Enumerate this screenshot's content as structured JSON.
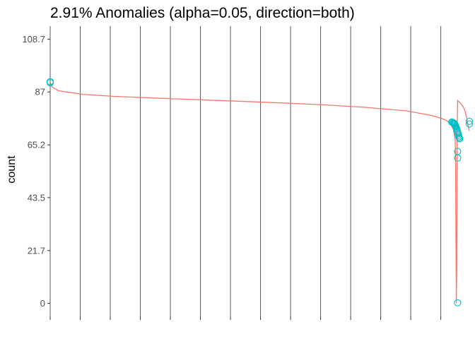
{
  "chart_data": {
    "type": "line",
    "title": "2.91% Anomalies (alpha=0.05, direction=both)",
    "xlabel": "",
    "ylabel": "count",
    "yticks": [
      "0",
      "21.7",
      "43.5",
      "65.2",
      "87",
      "108.7"
    ],
    "ylim": [
      -5.4,
      114.1
    ],
    "xlim": [
      0,
      1000
    ],
    "grid": "vertical-only",
    "legend": "none",
    "line_color": "#f8766d",
    "anomaly_color": "#00bfc4",
    "series": [
      {
        "values": [
          [
            0,
            91
          ],
          [
            5,
            89
          ],
          [
            20,
            87.5
          ],
          [
            50,
            86.7
          ],
          [
            80,
            86
          ],
          [
            150,
            85.2
          ],
          [
            250,
            84.5
          ],
          [
            350,
            83.8
          ],
          [
            450,
            83.2
          ],
          [
            550,
            82.5
          ],
          [
            650,
            81.7
          ],
          [
            750,
            80.7
          ],
          [
            850,
            79.2
          ],
          [
            905,
            77.5
          ],
          [
            920,
            76.8
          ],
          [
            935,
            76
          ],
          [
            945,
            75.3
          ],
          [
            955,
            73.8
          ],
          [
            962,
            71.5
          ],
          [
            966,
            68
          ],
          [
            967,
            62
          ],
          [
            968,
            30
          ],
          [
            969,
            0
          ],
          [
            970,
            15
          ],
          [
            971,
            70
          ],
          [
            972,
            83.5
          ],
          [
            978,
            82.5
          ],
          [
            985,
            81
          ],
          [
            990,
            79
          ],
          [
            994,
            76
          ],
          [
            997,
            73
          ],
          [
            1000,
            71
          ]
        ]
      }
    ],
    "anomalies": [
      [
        0,
        91.2
      ],
      [
        0,
        90.8
      ],
      [
        958,
        74.6
      ],
      [
        960,
        74.5
      ],
      [
        962,
        74.3
      ],
      [
        963,
        74.2
      ],
      [
        964,
        74.0
      ],
      [
        965,
        73.8
      ],
      [
        966,
        73.5
      ],
      [
        967,
        73.1
      ],
      [
        968,
        72.7
      ],
      [
        969,
        72.2
      ],
      [
        970,
        71.7
      ],
      [
        971,
        71.0
      ],
      [
        972,
        70.4
      ],
      [
        973,
        69.8
      ],
      [
        974,
        69.2
      ],
      [
        975,
        68.6
      ],
      [
        976,
        68.1
      ],
      [
        977,
        67.7
      ],
      [
        972,
        62.5
      ],
      [
        972,
        59.8
      ],
      [
        972,
        0.2
      ],
      [
        1000,
        74.9
      ],
      [
        1000,
        73.8
      ]
    ]
  }
}
